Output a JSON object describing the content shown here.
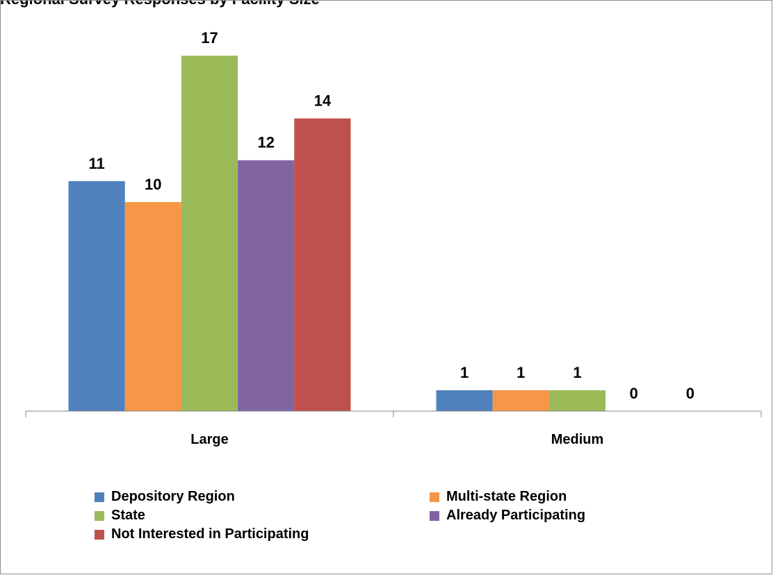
{
  "chart_data": {
    "type": "bar",
    "title": "Regional Survey Responses by Facility Size",
    "categories": [
      "Large",
      "Medium"
    ],
    "series": [
      {
        "name": "Depository Region",
        "color": "#4f81bd",
        "values": [
          11,
          1
        ]
      },
      {
        "name": "Multi-state Region",
        "color": "#f79646",
        "values": [
          10,
          1
        ]
      },
      {
        "name": "State",
        "color": "#9bbb59",
        "values": [
          17,
          1
        ]
      },
      {
        "name": "Already Participating",
        "color": "#8064a2",
        "values": [
          12,
          0
        ]
      },
      {
        "name": "Not Interested in Participating",
        "color": "#c0504d",
        "values": [
          14,
          0
        ]
      }
    ],
    "ylim": [
      0,
      19
    ],
    "grid": false,
    "legend_position": "bottom"
  }
}
